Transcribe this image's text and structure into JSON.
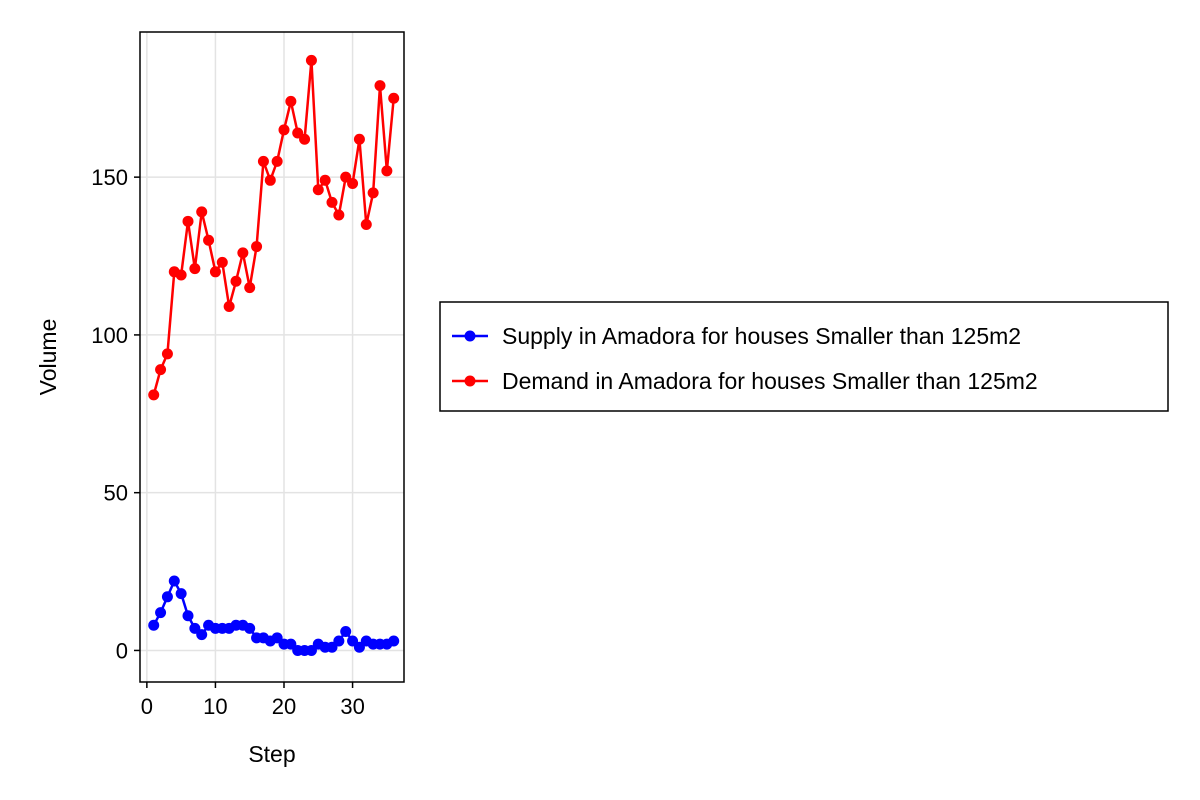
{
  "chart_data": {
    "type": "line",
    "xlabel": "Step",
    "ylabel": "Volume",
    "xlim": [
      -1,
      37.5
    ],
    "ylim": [
      -10,
      196
    ],
    "xticks": [
      0,
      10,
      20,
      30
    ],
    "yticks": [
      0,
      50,
      100,
      150
    ],
    "grid": true,
    "legend_position": "right",
    "x": [
      1,
      2,
      3,
      4,
      5,
      6,
      7,
      8,
      9,
      10,
      11,
      12,
      13,
      14,
      15,
      16,
      17,
      18,
      19,
      20,
      21,
      22,
      23,
      24,
      25,
      26,
      27,
      28,
      29,
      30,
      31,
      32,
      33,
      34,
      35,
      36
    ],
    "series": [
      {
        "name": "Supply in Amadora for houses Smaller than 125m2",
        "color": "#0000ff",
        "marker": "circle",
        "values": [
          8,
          12,
          17,
          22,
          18,
          11,
          7,
          5,
          8,
          7,
          7,
          7,
          8,
          8,
          7,
          4,
          4,
          3,
          4,
          2,
          2,
          0,
          0,
          0,
          2,
          1,
          1,
          3,
          6,
          3,
          1,
          3,
          2,
          2,
          2,
          3
        ]
      },
      {
        "name": "Demand in Amadora for houses Smaller than 125m2",
        "color": "#ff0000",
        "marker": "circle",
        "values": [
          81,
          89,
          94,
          120,
          119,
          136,
          121,
          139,
          130,
          120,
          123,
          109,
          117,
          126,
          115,
          128,
          155,
          149,
          155,
          165,
          174,
          164,
          162,
          187,
          146,
          149,
          142,
          138,
          150,
          148,
          162,
          135,
          145,
          179,
          152,
          175
        ]
      }
    ]
  }
}
